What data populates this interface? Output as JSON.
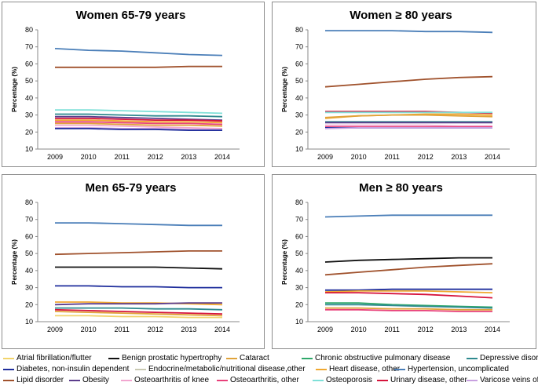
{
  "chart_data": [
    {
      "type": "line",
      "title": "Women 65-79 years",
      "ylabel": "Percentage (%)",
      "xlabel": "",
      "x": [
        "2009",
        "2010",
        "2011",
        "2012",
        "2013",
        "2014"
      ],
      "ylim": [
        10,
        80
      ],
      "yticks": [
        10,
        20,
        30,
        40,
        50,
        60,
        70,
        80
      ],
      "grid": false,
      "series": [
        {
          "name": "Hypertension, uncomplicated",
          "values": [
            69,
            68,
            67.5,
            66.5,
            65.5,
            65
          ]
        },
        {
          "name": "Lipid disorder",
          "values": [
            58,
            58,
            58,
            58,
            58.5,
            58.5
          ]
        },
        {
          "name": "Osteoporosis",
          "values": [
            33,
            33,
            32.5,
            32,
            31.5,
            31
          ]
        },
        {
          "name": "Depressive disorder",
          "values": [
            30.5,
            30.5,
            30,
            29.5,
            29.5,
            29
          ]
        },
        {
          "name": "Obesity",
          "values": [
            29,
            29,
            28.5,
            28,
            27.5,
            27
          ]
        },
        {
          "name": "Urinary disease, other",
          "values": [
            28,
            28,
            27.5,
            27,
            27,
            26.5
          ]
        },
        {
          "name": "Heart disease, other",
          "values": [
            27,
            27,
            26.5,
            26,
            26,
            25.5
          ]
        },
        {
          "name": "Osteoarthritis, other",
          "values": [
            26,
            26,
            25.5,
            25,
            25,
            24.5
          ]
        },
        {
          "name": "Cataract",
          "values": [
            25,
            25,
            24.5,
            24,
            24,
            23.5
          ]
        },
        {
          "name": "Osteoarthritis of knee",
          "values": [
            24,
            24,
            23.5,
            23,
            22.5,
            22
          ]
        },
        {
          "name": "Varicose veins of leg",
          "values": [
            22.5,
            22.5,
            22,
            22,
            21.5,
            21.5
          ]
        },
        {
          "name": "Diabetes, non-insulin dependent",
          "values": [
            22,
            22,
            21.5,
            21.5,
            21,
            21
          ]
        }
      ]
    },
    {
      "type": "line",
      "title": "Women ≥ 80 years",
      "ylabel": "Percentage (%)",
      "xlabel": "",
      "x": [
        "2009",
        "2010",
        "2011",
        "2012",
        "2013",
        "2014"
      ],
      "ylim": [
        10,
        80
      ],
      "yticks": [
        10,
        20,
        30,
        40,
        50,
        60,
        70,
        80
      ],
      "grid": false,
      "series": [
        {
          "name": "Hypertension, uncomplicated",
          "values": [
            79.5,
            79.5,
            79.5,
            79,
            79,
            78.5
          ]
        },
        {
          "name": "Lipid disorder",
          "values": [
            46.5,
            48,
            49.5,
            51,
            52,
            52.5
          ]
        },
        {
          "name": "Urinary disease, other",
          "values": [
            32,
            32,
            32,
            32,
            31.5,
            31
          ]
        },
        {
          "name": "Osteoporosis",
          "values": [
            31.5,
            31.5,
            31.5,
            31.5,
            31.5,
            31.5
          ]
        },
        {
          "name": "Heart disease, other",
          "values": [
            28,
            29.5,
            30,
            30.5,
            30.5,
            30
          ]
        },
        {
          "name": "Cataract",
          "values": [
            28.5,
            29.5,
            30,
            30,
            29.5,
            29
          ]
        },
        {
          "name": "Depressive disorder",
          "values": [
            26,
            26,
            26,
            26,
            26,
            26
          ]
        },
        {
          "name": "Obesity",
          "values": [
            25.5,
            25.5,
            25.5,
            25.5,
            25.5,
            25.5
          ]
        },
        {
          "name": "Osteoarthritis of knee",
          "values": [
            24,
            24,
            24,
            24,
            23.5,
            23.5
          ]
        },
        {
          "name": "Osteoarthritis, other",
          "values": [
            23,
            23,
            23,
            23,
            23,
            23
          ]
        },
        {
          "name": "Diabetes, non-insulin dependent",
          "values": [
            22.5,
            22.5,
            22.5,
            22.5,
            22.5,
            22.5
          ]
        },
        {
          "name": "Varicose veins of leg",
          "values": [
            22,
            22.5,
            22.5,
            22.5,
            22.5,
            22.5
          ]
        }
      ]
    },
    {
      "type": "line",
      "title": "Men 65-79 years",
      "ylabel": "Percentage (%)",
      "xlabel": "",
      "x": [
        "2009",
        "2010",
        "2011",
        "2012",
        "2013",
        "2014"
      ],
      "ylim": [
        10,
        80
      ],
      "yticks": [
        10,
        20,
        30,
        40,
        50,
        60,
        70,
        80
      ],
      "grid": false,
      "series": [
        {
          "name": "Hypertension, uncomplicated",
          "values": [
            68,
            68,
            67.5,
            67,
            66.5,
            66.5
          ]
        },
        {
          "name": "Lipid disorder",
          "values": [
            49.5,
            50,
            50.5,
            51,
            51.5,
            51.5
          ]
        },
        {
          "name": "Benign prostatic hypertrophy",
          "values": [
            42,
            42,
            42,
            42,
            41.5,
            41
          ]
        },
        {
          "name": "Diabetes, non-insulin dependent",
          "values": [
            31,
            31,
            30.5,
            30.5,
            30,
            30
          ]
        },
        {
          "name": "Heart disease, other",
          "values": [
            21.5,
            21.5,
            21,
            21,
            20.5,
            20
          ]
        },
        {
          "name": "Obesity",
          "values": [
            20,
            20.5,
            20.5,
            20.5,
            21,
            21
          ]
        },
        {
          "name": "Depressive disorder",
          "values": [
            18,
            18,
            18,
            17.5,
            17.5,
            17
          ]
        },
        {
          "name": "Urinary disease, other",
          "values": [
            17,
            16.5,
            16,
            15.5,
            15,
            14.5
          ]
        },
        {
          "name": "Cataract",
          "values": [
            16,
            15.5,
            15,
            14.5,
            14,
            13.5
          ]
        },
        {
          "name": "Atrial fibrillation/flutter",
          "values": [
            13.5,
            13.5,
            13,
            13,
            12.5,
            12.5
          ]
        }
      ]
    },
    {
      "type": "line",
      "title": "Men ≥ 80 years",
      "ylabel": "Percentage (%)",
      "xlabel": "",
      "x": [
        "2009",
        "2010",
        "2011",
        "2012",
        "2013",
        "2014"
      ],
      "ylim": [
        10,
        80
      ],
      "yticks": [
        10,
        20,
        30,
        40,
        50,
        60,
        70,
        80
      ],
      "grid": false,
      "series": [
        {
          "name": "Hypertension, uncomplicated",
          "values": [
            71.5,
            72,
            72.5,
            72.5,
            72.5,
            72.5
          ]
        },
        {
          "name": "Benign prostatic hypertrophy",
          "values": [
            45,
            46,
            46.5,
            47,
            47.5,
            47.5
          ]
        },
        {
          "name": "Lipid disorder",
          "values": [
            37.5,
            39,
            40.5,
            42,
            43,
            44
          ]
        },
        {
          "name": "Diabetes, non-insulin dependent",
          "values": [
            28.5,
            28.5,
            29,
            29,
            29,
            29
          ]
        },
        {
          "name": "Heart disease, other",
          "values": [
            27.5,
            28,
            28,
            28,
            27.5,
            27
          ]
        },
        {
          "name": "Urinary disease, other",
          "values": [
            27,
            27,
            26.5,
            26,
            25,
            24
          ]
        },
        {
          "name": "Chronic obstructive pulmonary disease",
          "values": [
            21,
            21,
            20,
            19.5,
            19,
            18.5
          ]
        },
        {
          "name": "Depressive disorder",
          "values": [
            20,
            20,
            19.5,
            19,
            18.5,
            18
          ]
        },
        {
          "name": "Cataract",
          "values": [
            18,
            18,
            17.5,
            17.5,
            17,
            17
          ]
        },
        {
          "name": "Osteoarthritis, other",
          "values": [
            17,
            17,
            16.5,
            16.5,
            16,
            16
          ]
        }
      ]
    }
  ],
  "legend": [
    [
      {
        "label": "Atrial fibrillation/flutter",
        "color": "#f2d46b"
      },
      {
        "label": "Benign prostatic hypertrophy",
        "color": "#111111"
      },
      {
        "label": "Cataract",
        "color": "#e0a33a"
      },
      {
        "label": "Chronic obstructive pulmonary disease",
        "color": "#2ea86a"
      },
      {
        "label": "Depressive disorder",
        "color": "#2f8a8f"
      }
    ],
    [
      {
        "label": "Diabetes, non-insulin dependent",
        "color": "#1f2e9c"
      },
      {
        "label": "Endocrine/metabolic/nutritional disease,other",
        "color": "#c9c9b2"
      },
      {
        "label": "Heart disease, other",
        "color": "#f0a830"
      },
      {
        "label": "Hypertension, uncomplicated",
        "color": "#4a7eb8"
      }
    ],
    [
      {
        "label": "Lipid disorder",
        "color": "#a0522d"
      },
      {
        "label": "Obesity",
        "color": "#5c3d8c"
      },
      {
        "label": "Osteoarthritis of knee",
        "color": "#f2a6d0"
      },
      {
        "label": "Osteoarthritis, other",
        "color": "#e8407a"
      },
      {
        "label": "Osteoporosis",
        "color": "#7fe0d8"
      },
      {
        "label": "Urinary disease, other",
        "color": "#d6143c"
      },
      {
        "label": "Varicose veins of leg",
        "color": "#c8a0e0"
      }
    ]
  ]
}
